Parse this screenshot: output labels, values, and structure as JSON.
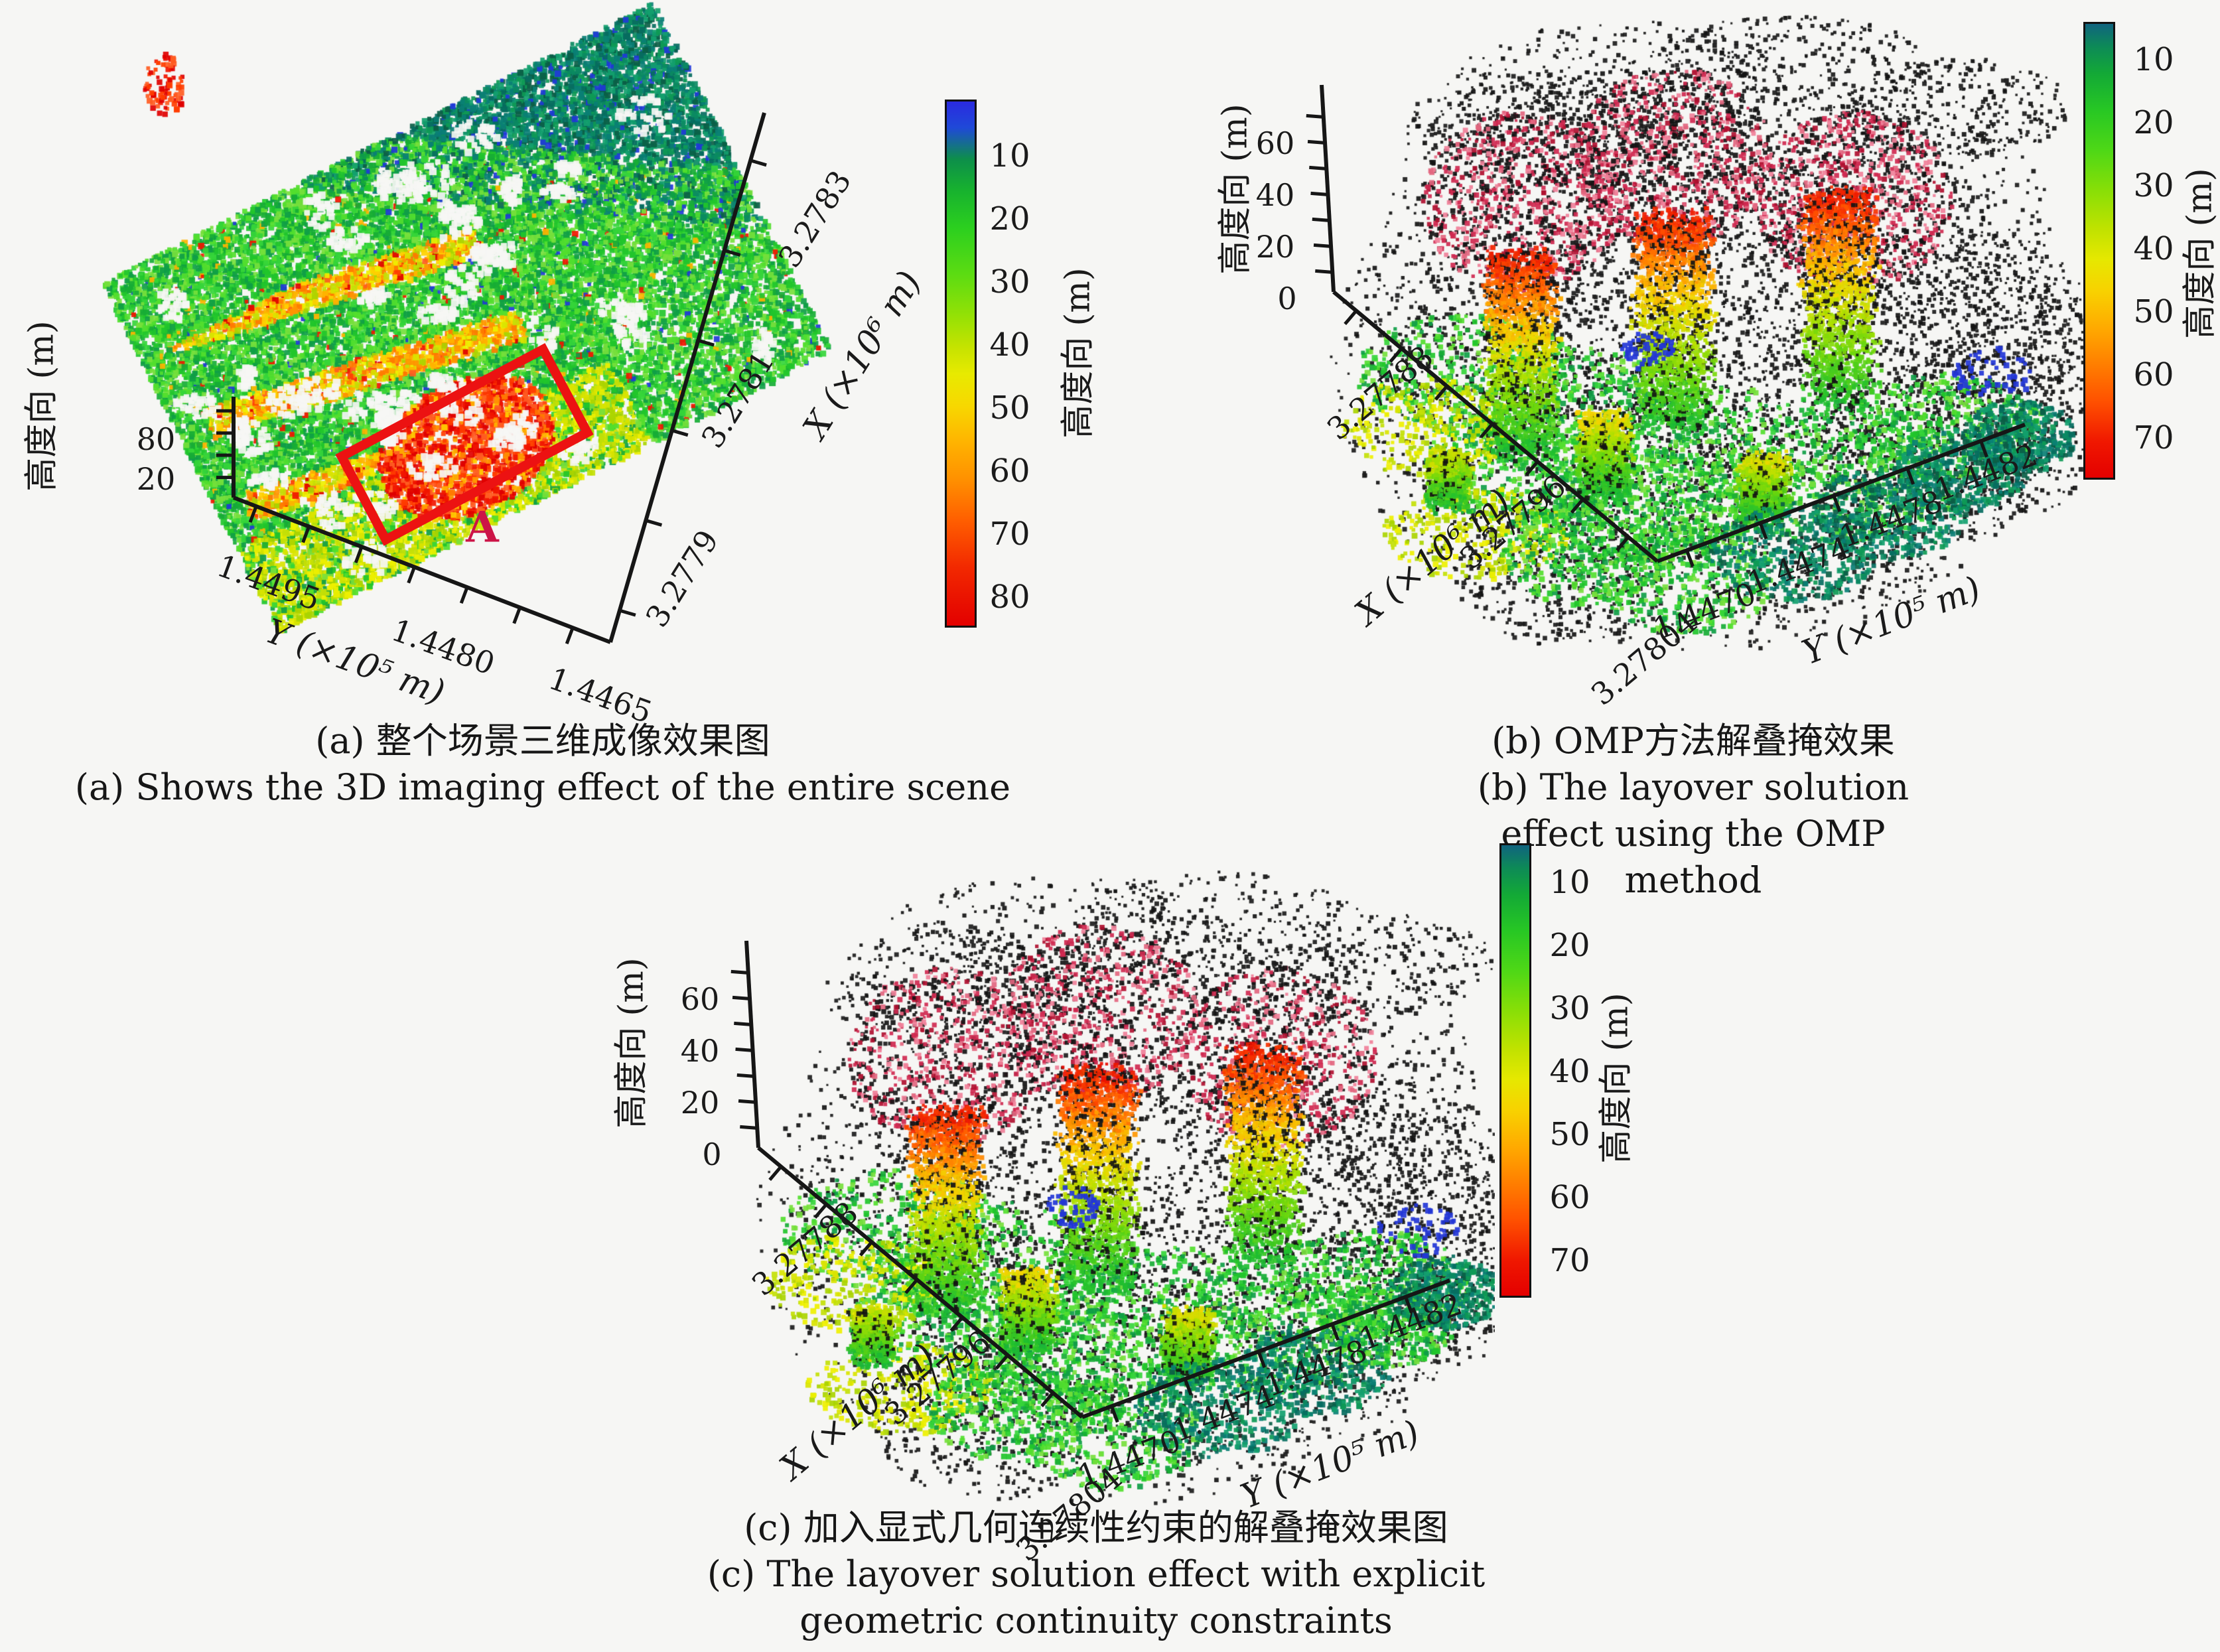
{
  "figure": {
    "background": "#f6f6f4",
    "panels": [
      {
        "id": "a",
        "caption_lines": [
          "(a) 整个场景三维成像效果图",
          "(a) Shows the 3D imaging effect of the entire scene"
        ],
        "z_axis": {
          "label": "高度向 (m)",
          "ticks": [
            "80",
            "20"
          ]
        },
        "y_axis": {
          "label": "Y (×10⁵ m)",
          "ticks": [
            "1.4495",
            "1.4480",
            "1.4465"
          ]
        },
        "x_axis": {
          "label": "X (×10⁶ m)",
          "ticks": [
            "3.2779",
            "3.2781",
            "3.2783"
          ]
        },
        "colorbar": {
          "label": "高度向 (m)",
          "ticks": [
            "10",
            "20",
            "30",
            "40",
            "50",
            "60",
            "70",
            "80"
          ]
        },
        "annotation": {
          "label": "A",
          "box_color": "#ec1212"
        }
      },
      {
        "id": "b",
        "caption_lines": [
          "(b) OMP方法解叠掩效果",
          "(b) The layover solution effect using the OMP method"
        ],
        "z_axis": {
          "label": "高度向 (m)",
          "ticks": [
            "60",
            "40",
            "20",
            "0"
          ]
        },
        "x_axis": {
          "label": "X (×10⁶ m)",
          "ticks": [
            "3.27788",
            "3.27796",
            "3.27804"
          ]
        },
        "y_axis": {
          "label": "Y (×10⁵ m)",
          "ticks": [
            "1.4470",
            "1.4474",
            "1.4478",
            "1.4482"
          ]
        },
        "colorbar": {
          "label": "高度向 (m)",
          "ticks": [
            "10",
            "20",
            "30",
            "40",
            "50",
            "60",
            "70"
          ]
        }
      },
      {
        "id": "c",
        "caption_lines": [
          "(c) 加入显式几何连续性约束的解叠掩效果图",
          "(c) The layover solution effect with explicit",
          "geometric continuity constraints"
        ],
        "z_axis": {
          "label": "高度向 (m)",
          "ticks": [
            "60",
            "40",
            "20",
            "0"
          ]
        },
        "x_axis": {
          "label": "X (×10⁶ m)",
          "ticks": [
            "3.27788",
            "3.27796",
            "3.27804"
          ]
        },
        "y_axis": {
          "label": "Y (×10⁵ m)",
          "ticks": [
            "1.4470",
            "1.4474",
            "1.4478",
            "1.4482"
          ]
        },
        "colorbar": {
          "label": "高度向 (m)",
          "ticks": [
            "10",
            "20",
            "30",
            "40",
            "50",
            "60",
            "70"
          ]
        }
      }
    ]
  },
  "chart_data": [
    {
      "type": "scatter",
      "projection": "3d",
      "title": "(a) 整个场景三维成像效果图 / Shows the 3D imaging effect of the entire scene",
      "xlabel": "X (×10⁶ m)",
      "ylabel": "Y (×10⁵ m)",
      "zlabel": "高度向 (m)",
      "x_ticks": [
        3.2779,
        3.2781,
        3.2783
      ],
      "y_ticks": [
        1.4495,
        1.448,
        1.4465
      ],
      "z_ticks": [
        80,
        20
      ],
      "colorbar": {
        "label": "高度向 (m)",
        "ticks": [
          10,
          20,
          30,
          40,
          50,
          60,
          70,
          80
        ],
        "orientation": "vertical",
        "low_at_top": true
      },
      "colormap": "jet (blue=low height, green≈20-30, yellow≈40-50, orange≈60, red≈70-80)",
      "legend": "none",
      "grid": false,
      "annotations": [
        {
          "text": "A",
          "color": "#cc1447",
          "shape": "red rotated rectangle around high (red ≈70-80 m) building cluster near bottom-center of scene"
        }
      ],
      "content_summary": "Dense urban SAR tomography point cloud of the full scene, tilted ~-27°; mostly green points (10-30 m), diagonal orange/yellow building rows (40-60 m), red cluster (70-80 m) inside annotation box A, dark teal band along top edge, yellow band along lower-left edge."
    },
    {
      "type": "scatter",
      "projection": "3d",
      "title": "(b) OMP方法解叠掩效果 / The layover solution effect using the OMP method",
      "xlabel": "X (×10⁶ m)",
      "ylabel": "Y (×10⁵ m)",
      "zlabel": "高度向 (m)",
      "x_ticks": [
        3.27788,
        3.27796,
        3.27804
      ],
      "y_ticks": [
        1.447,
        1.4474,
        1.4478,
        1.4482
      ],
      "z_ticks": [
        60,
        40,
        20,
        0
      ],
      "colorbar": {
        "label": "高度向 (m)",
        "ticks": [
          10,
          20,
          30,
          40,
          50,
          60,
          70
        ],
        "orientation": "vertical",
        "low_at_top": true
      },
      "colormap": "jet (teal/green=low, yellow≈30-40, orange≈50-60, red≈70)",
      "legend": "none",
      "grid": false,
      "content_summary": "Layover-resolved point cloud of region A via OMP: three tall towers with red tops (~60-70 m) fading through orange/yellow to green bases, heavy black speckle noise and pink/red ghost points above towers, teal/green ground clusters (~10-20 m) along lower-right."
    },
    {
      "type": "scatter",
      "projection": "3d",
      "title": "(c) 加入显式几何连续性约束的解叠掩效果图 / The layover solution effect with explicit geometric continuity constraints",
      "xlabel": "X (×10⁶ m)",
      "ylabel": "Y (×10⁵ m)",
      "zlabel": "高度向 (m)",
      "x_ticks": [
        3.27788,
        3.27796,
        3.27804
      ],
      "y_ticks": [
        1.447,
        1.4474,
        1.4478,
        1.4482
      ],
      "z_ticks": [
        60,
        40,
        20,
        0
      ],
      "colorbar": {
        "label": "高度向 (m)",
        "ticks": [
          10,
          20,
          30,
          40,
          50,
          60,
          70
        ],
        "orientation": "vertical",
        "low_at_top": true
      },
      "colormap": "jet (teal/green=low, yellow≈30-40, orange≈50-60, red≈70)",
      "legend": "none",
      "grid": false,
      "content_summary": "Same region as (b) but solved with explicit geometric continuity constraints: cleaner towers (red tops ~60-70 m, orange/yellow shafts, green bases), less scattered noise, teal/green ground clusters along lower-right."
    }
  ]
}
